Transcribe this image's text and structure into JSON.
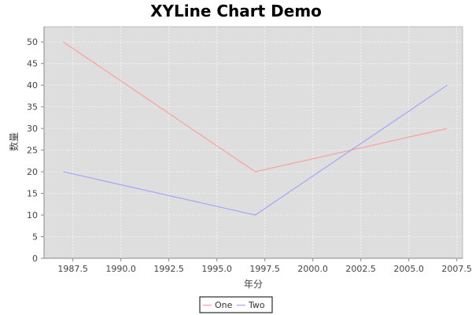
{
  "chart_data": {
    "type": "line",
    "title": "XYLine Chart Demo",
    "xlabel": "年分",
    "ylabel": "数量",
    "xlim": [
      1986,
      2007.8
    ],
    "ylim": [
      0,
      53.5
    ],
    "x_ticks": [
      1987.5,
      1990.0,
      1992.5,
      1995.0,
      1997.5,
      2000.0,
      2002.5,
      2005.0,
      2007.5
    ],
    "y_ticks": [
      0,
      5,
      10,
      15,
      20,
      25,
      30,
      35,
      40,
      45,
      50
    ],
    "x_tick_labels": [
      "1987.5",
      "1990.0",
      "1992.5",
      "1995.0",
      "1997.5",
      "2000.0",
      "2002.5",
      "2005.0",
      "2007.5"
    ],
    "y_tick_labels": [
      "0",
      "5",
      "10",
      "15",
      "20",
      "25",
      "30",
      "35",
      "40",
      "45",
      "50"
    ],
    "grid": true,
    "legend": "bottom-center",
    "series": [
      {
        "name": "One",
        "color": "#ff9e9e",
        "points": [
          {
            "x": 1987,
            "y": 50
          },
          {
            "x": 1997,
            "y": 20
          },
          {
            "x": 2007,
            "y": 30
          }
        ]
      },
      {
        "name": "Two",
        "color": "#a3a3ff",
        "points": [
          {
            "x": 1987,
            "y": 20
          },
          {
            "x": 1997,
            "y": 10
          },
          {
            "x": 2007,
            "y": 40
          }
        ]
      }
    ]
  },
  "colors": {
    "plot_background": "#dedede",
    "grid": "#f3f3f3",
    "axis": "#8a8a8a"
  }
}
